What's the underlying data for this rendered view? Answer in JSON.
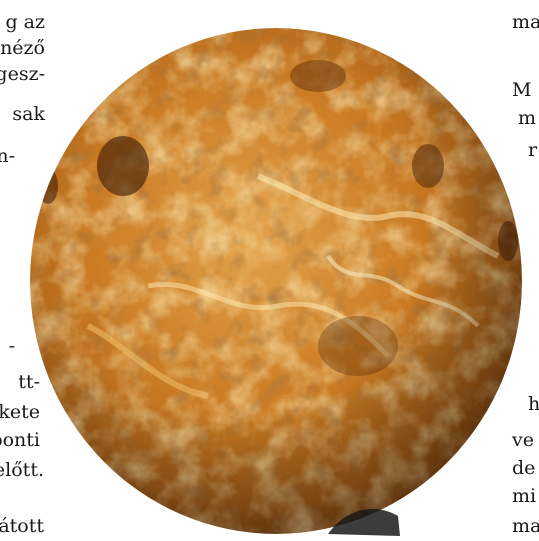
{
  "left_column_fragments": [
    "g az",
    "néző",
    "gesz-",
    "sak",
    "n-",
    "-",
    "tt-",
    "kete",
    "ponti",
    "előtt.",
    "látott"
  ],
  "right_column_fragments": [
    "ma",
    "M",
    "m",
    "r",
    "h",
    "ve",
    "de",
    "mi",
    "ma"
  ],
  "image": {
    "subject": "Venus",
    "colors": {
      "base": "#c97a22",
      "dark": "#6b3510",
      "bright": "#f3c06a",
      "highlight": "#ffe9b0"
    }
  }
}
